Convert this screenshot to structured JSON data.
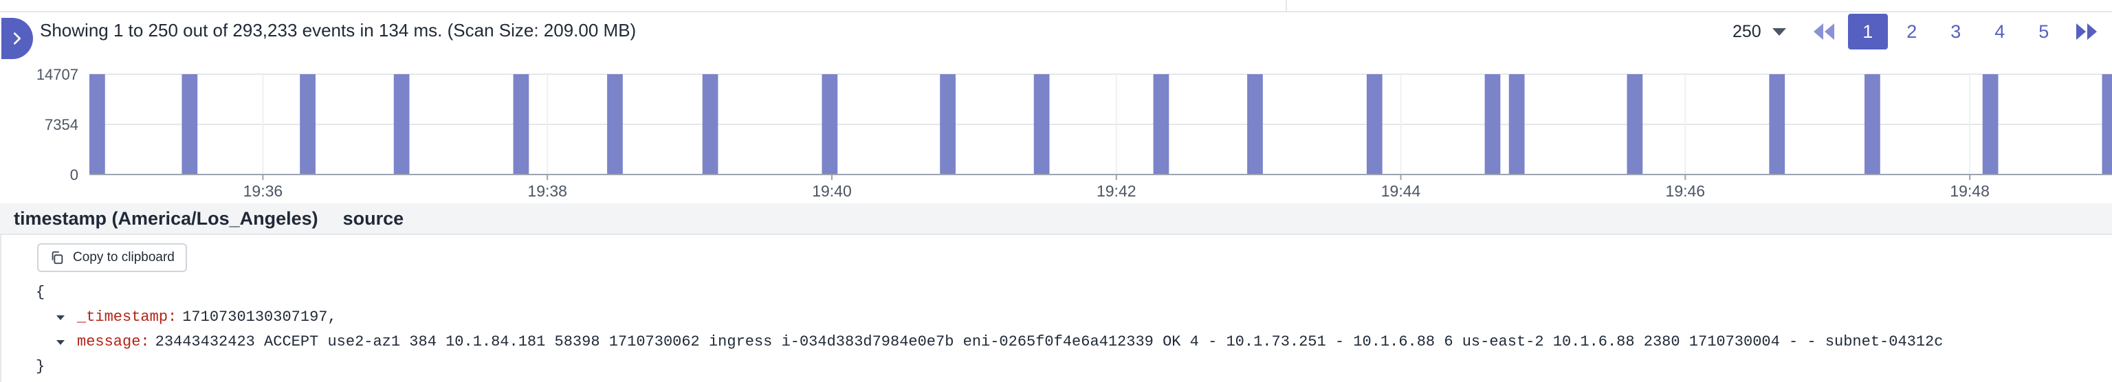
{
  "summary": "Showing 1 to 250 out of 293,233 events in 134 ms. (Scan Size: 209.00 MB)",
  "pager": {
    "page_size": "250",
    "pages": [
      "1",
      "2",
      "3",
      "4",
      "5"
    ],
    "current_page": "1"
  },
  "colors": {
    "accent": "#5660c0",
    "bar": "#7b83c9",
    "json_key": "#b42318"
  },
  "icons": {
    "expand": "chevron-right-icon",
    "first": "double-chevron-left-icon",
    "next": "double-chevron-right-icon",
    "copy": "copy-icon"
  },
  "chart_data": {
    "type": "bar",
    "y_ticks": [
      "14707",
      "7354",
      "0"
    ],
    "ylim": [
      0,
      14707
    ],
    "x_ticks": [
      "19:36",
      "19:38",
      "19:40",
      "19:42",
      "19:44",
      "19:46",
      "19:48"
    ],
    "x_tick_minutes": [
      36,
      38,
      40,
      42,
      44,
      46,
      48
    ],
    "xlim_minutes": [
      34.78,
      49.0
    ],
    "bar_start_minutes": [
      34.78,
      35.43,
      36.26,
      36.92,
      37.76,
      38.42,
      39.09,
      39.93,
      40.76,
      41.42,
      42.26,
      42.92,
      43.76,
      44.59,
      44.76,
      45.59,
      46.59,
      47.26,
      48.09,
      48.93
    ],
    "bar_width_minutes": 0.11,
    "values": [
      14707,
      14707,
      14707,
      14707,
      14707,
      14707,
      14707,
      14707,
      14707,
      14707,
      14707,
      14707,
      14707,
      14707,
      14707,
      14707,
      14707,
      14707,
      14707,
      14707
    ],
    "grid": true
  },
  "columns": {
    "timestamp": "timestamp (America/Los_Angeles)",
    "source": "source"
  },
  "detail": {
    "copy_label": "Copy to clipboard",
    "open_brace": "{",
    "close_brace": "}",
    "fields": [
      {
        "key": "_timestamp",
        "value": "1710730130307197,"
      },
      {
        "key": "message",
        "value": "23443432423 ACCEPT use2-az1 384 10.1.84.181 58398 1710730062 ingress i-034d383d7984e0e7b eni-0265f0f4e6a412339 OK 4 - 10.1.73.251 - 10.1.6.88 6 us-east-2 10.1.6.88 2380 1710730004 - - subnet-04312c"
      }
    ]
  }
}
